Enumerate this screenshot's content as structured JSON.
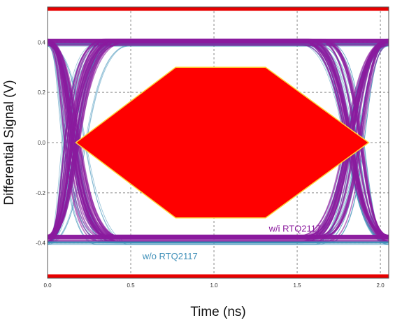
{
  "chart_data": {
    "type": "line",
    "title": "",
    "xlabel": "Time (ns)",
    "ylabel": "Differential Signal (V)",
    "xlim": [
      0.0,
      2.05
    ],
    "ylim": [
      -0.54,
      0.54
    ],
    "x_ticks": [
      "0.0",
      "0.5",
      "1.0",
      "1.5",
      "2.0"
    ],
    "x_tick_values": [
      0.0,
      0.5,
      1.0,
      1.5,
      2.0
    ],
    "y_ticks": [
      "0.4",
      "0.2",
      "0.0",
      "-0.2",
      "-0.4"
    ],
    "y_tick_values": [
      0.4,
      0.2,
      0.0,
      -0.2,
      -0.4
    ],
    "grid": true,
    "limit_lines": [
      0.54,
      -0.54
    ],
    "mask": {
      "x": [
        0.17,
        0.77,
        1.31,
        1.93,
        1.31,
        0.77
      ],
      "y": [
        0.0,
        0.3,
        0.3,
        0.0,
        -0.3,
        -0.3
      ]
    },
    "series": [
      {
        "name": "w/i RTQ2117",
        "eye_high": 0.4,
        "eye_low": -0.38,
        "crossings": [
          0.0,
          2.0
        ],
        "jitter_ns": 0.05,
        "band_v": 0.012
      },
      {
        "name": "w/o RTQ2117",
        "eye_high": 0.39,
        "eye_low": -0.4,
        "crossings": [
          0.0,
          2.0
        ],
        "jitter_ns": 0.07,
        "band_v": 0.006
      }
    ],
    "annotations": [
      {
        "text": "w/i RTQ2117",
        "series": 0,
        "x": 1.33,
        "y": -0.355
      },
      {
        "text": "w/o RTQ2117",
        "series": 1,
        "x": 0.57,
        "y": -0.465
      }
    ]
  },
  "colors": {
    "mask_fill": "#ff0000",
    "mask_edge": "#ffd23a",
    "limit_line": "#e80000",
    "with_rtq": "#8b1a9e",
    "without_rtq": "#3e8fb8",
    "grid": "#8c8c8c"
  }
}
